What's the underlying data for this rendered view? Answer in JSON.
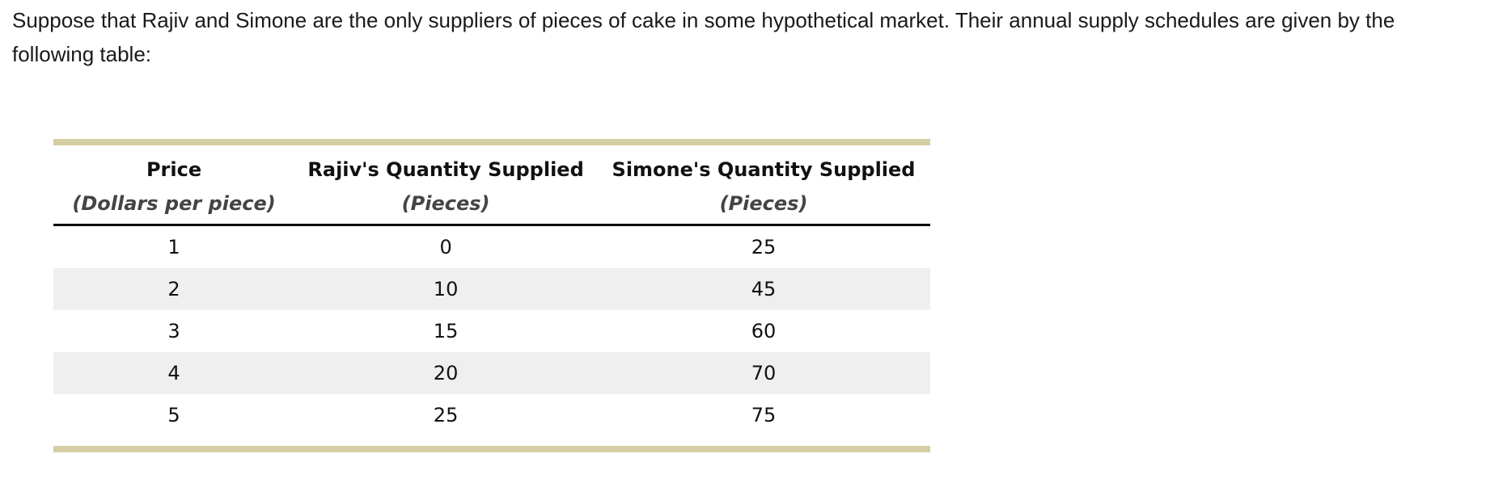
{
  "question": {
    "line1": "Suppose that Rajiv and Simone are the only suppliers of pieces of cake in some hypothetical market. Their annual supply schedules are given by the",
    "line2": "following table:"
  },
  "table": {
    "columns": [
      {
        "label": "Price",
        "unit": "(Dollars per piece)"
      },
      {
        "label": "Rajiv's Quantity Supplied",
        "unit": "(Pieces)"
      },
      {
        "label": "Simone's Quantity Supplied",
        "unit": "(Pieces)"
      }
    ],
    "rows": [
      [
        "1",
        "0",
        "25"
      ],
      [
        "2",
        "10",
        "45"
      ],
      [
        "3",
        "15",
        "60"
      ],
      [
        "4",
        "20",
        "70"
      ],
      [
        "5",
        "25",
        "75"
      ]
    ],
    "colors": {
      "accent_bar": "#d5cda3",
      "alt_row": "#efefef",
      "unit_text": "#444444",
      "header_rule": "#0b0b0b"
    }
  }
}
